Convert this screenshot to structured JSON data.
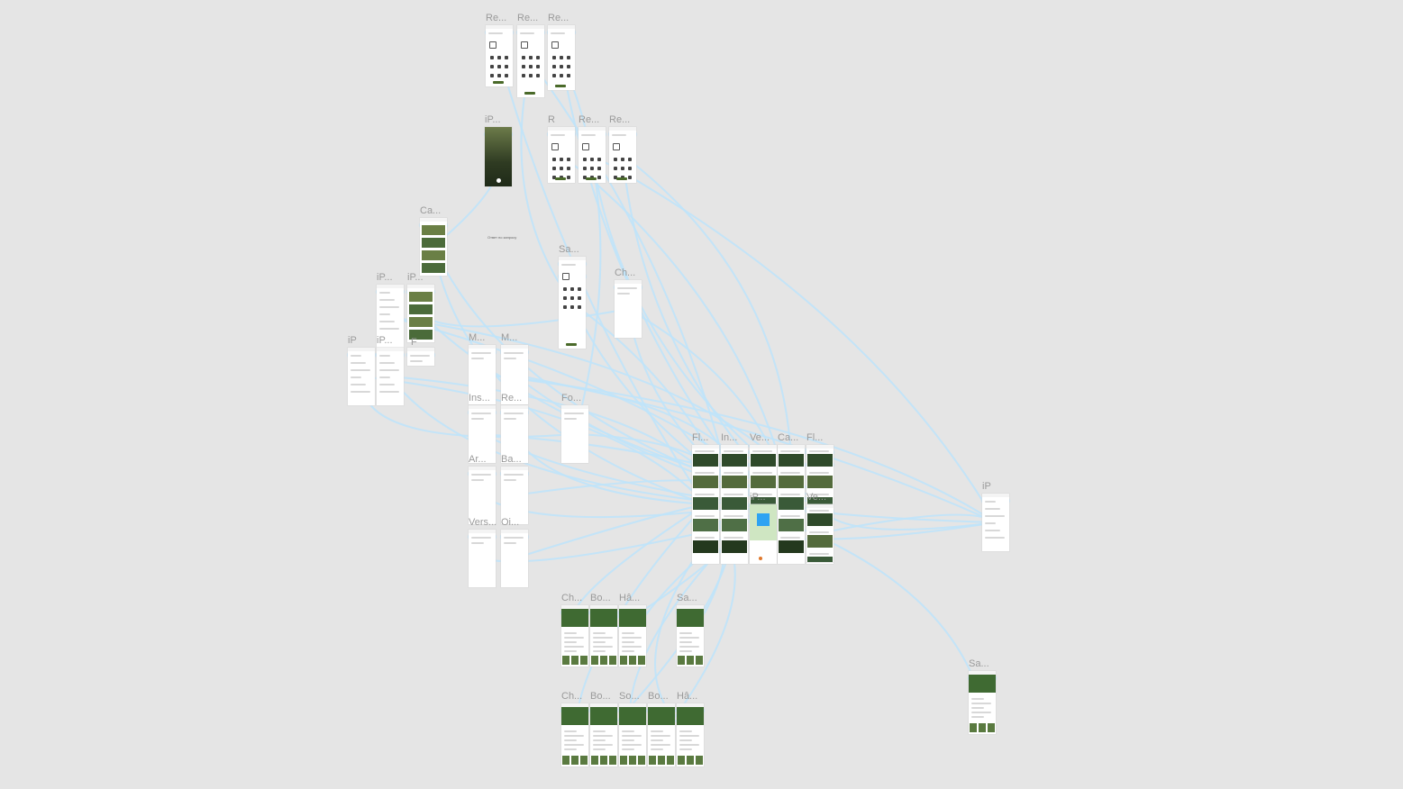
{
  "canvas_background": "#e5e5e5",
  "wire_color": "#bfe3f9",
  "frames": [
    {
      "id": "re1",
      "label": "Re...",
      "kind": "form"
    },
    {
      "id": "re2",
      "label": "Re...",
      "kind": "form"
    },
    {
      "id": "re3",
      "label": "Re...",
      "kind": "form"
    },
    {
      "id": "ip_photo",
      "label": "iP...",
      "kind": "photo"
    },
    {
      "id": "re4",
      "label": "R",
      "kind": "form"
    },
    {
      "id": "re5",
      "label": "Re...",
      "kind": "form"
    },
    {
      "id": "re6",
      "label": "Re...",
      "kind": "form"
    },
    {
      "id": "ca1",
      "label": "Ca...",
      "kind": "gallery"
    },
    {
      "id": "sa1",
      "label": "Sa...",
      "kind": "form"
    },
    {
      "id": "ch1",
      "label": "Ch...",
      "kind": "text"
    },
    {
      "id": "ip1",
      "label": "iP...",
      "kind": "list"
    },
    {
      "id": "ip2",
      "label": "iP...",
      "kind": "gallery"
    },
    {
      "id": "ip3",
      "label": "iP",
      "kind": "list"
    },
    {
      "id": "ip4",
      "label": "iP...",
      "kind": "list"
    },
    {
      "id": "f1",
      "label": "F",
      "kind": "text"
    },
    {
      "id": "m1",
      "label": "M...",
      "kind": "text"
    },
    {
      "id": "m2",
      "label": "M...",
      "kind": "text"
    },
    {
      "id": "ins1",
      "label": "Ins...",
      "kind": "text"
    },
    {
      "id": "re7",
      "label": "Re...",
      "kind": "text"
    },
    {
      "id": "fo1",
      "label": "Fo...",
      "kind": "text"
    },
    {
      "id": "ar1",
      "label": "Ar...",
      "kind": "text"
    },
    {
      "id": "ba1",
      "label": "Ba...",
      "kind": "text"
    },
    {
      "id": "vers1",
      "label": "Vers...",
      "kind": "text"
    },
    {
      "id": "oi1",
      "label": "Oi...",
      "kind": "text"
    },
    {
      "id": "hub1",
      "label": "Fl...",
      "kind": "feed"
    },
    {
      "id": "hub2",
      "label": "In...",
      "kind": "feed"
    },
    {
      "id": "hub3",
      "label": "Ve...",
      "kind": "feed"
    },
    {
      "id": "hub4",
      "label": "Ca...",
      "kind": "feed"
    },
    {
      "id": "hub5",
      "label": "Fl...",
      "kind": "feed"
    },
    {
      "id": "ip_hub",
      "label": "iP...",
      "kind": "map"
    },
    {
      "id": "ve2",
      "label": "Ve...",
      "kind": "feed"
    },
    {
      "id": "ip_right",
      "label": "iP",
      "kind": "list"
    },
    {
      "id": "sa_right",
      "label": "Sa...",
      "kind": "detail"
    },
    {
      "id": "ch2",
      "label": "Ch...",
      "kind": "detail"
    },
    {
      "id": "bo1",
      "label": "Bo...",
      "kind": "detail"
    },
    {
      "id": "ha1",
      "label": "Hâ...",
      "kind": "detail"
    },
    {
      "id": "sa2",
      "label": "Sa...",
      "kind": "detail"
    },
    {
      "id": "ch3",
      "label": "Ch...",
      "kind": "detail"
    },
    {
      "id": "bo2",
      "label": "Bo...",
      "kind": "detail"
    },
    {
      "id": "so1",
      "label": "So...",
      "kind": "detail"
    },
    {
      "id": "bo3",
      "label": "Bo...",
      "kind": "detail"
    },
    {
      "id": "ha2",
      "label": "Hâ...",
      "kind": "detail"
    }
  ],
  "notes": [
    {
      "id": "note1",
      "text": "Ответ по запросу"
    }
  ]
}
